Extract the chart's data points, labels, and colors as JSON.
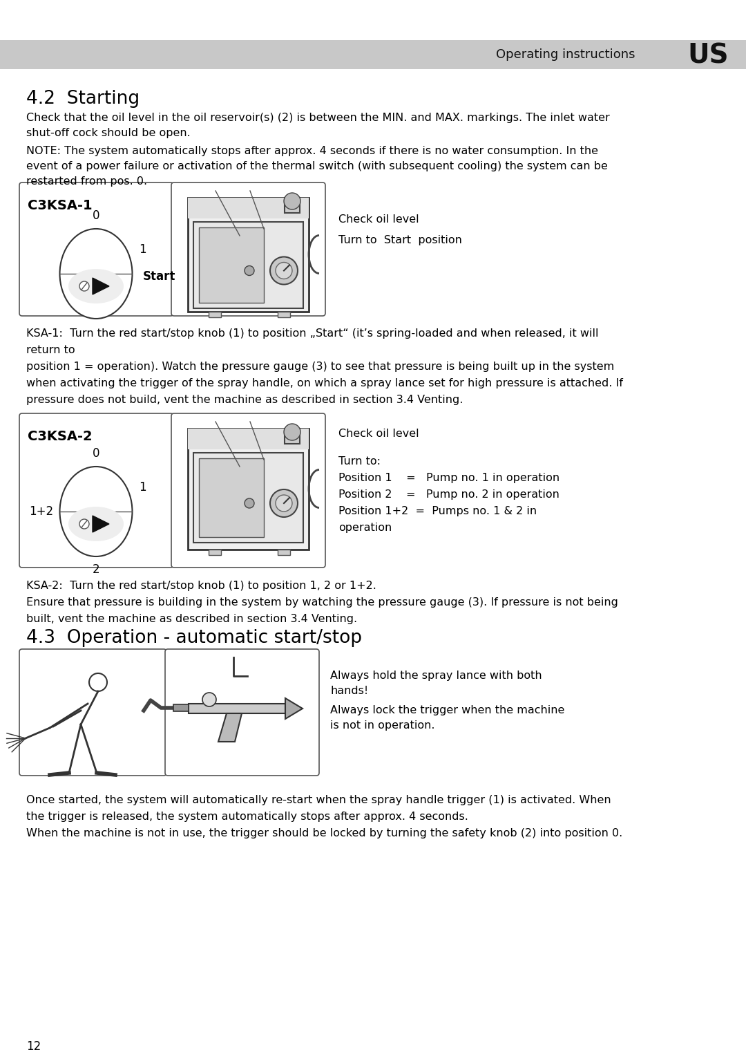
{
  "page_bg": "#ffffff",
  "header_bg": "#c8c8c8",
  "header_text": "Operating instructions",
  "header_code": "US",
  "section_42_title": "4.2  Starting",
  "para1_line1": "Check that the oil level in the oil reservoir(s) (2) is between the MIN. and MAX. markings. The inlet water",
  "para1_line2": "shut-off cock should be open.",
  "para2_line1": "NOTE: The system automatically stops after approx. 4 seconds if there is no water consumption. In the",
  "para2_line2": "event of a power failure or activation of the thermal switch (with subsequent cooling) the system can be",
  "para2_line3": "restarted from pos. 0.",
  "box1_label": "C3KSA-1",
  "box1_0": "0",
  "box1_1": "1",
  "box1_start": "Start",
  "check_oil_1": "Check oil level",
  "turn_start": "Turn to  Start  position",
  "ksa1_lines": [
    "KSA-1:  Turn the red start/stop knob (1) to position „Start“ (it’s spring-loaded and when released, it will",
    "return to",
    "position 1 = operation). Watch the pressure gauge (3) to see that pressure is being built up in the system",
    "when activating the trigger of the spray handle, on which a spray lance set for high pressure is attached. If",
    "pressure does not build, vent the machine as described in section 3.4 Venting."
  ],
  "box3_label": "C3KSA-2",
  "box3_0": "0",
  "box3_1": "1",
  "box3_2": "2",
  "box3_12": "1+2",
  "check_oil_2": "Check oil level",
  "turn_to_lines": [
    "Turn to:",
    "Position 1    =   Pump no. 1 in operation",
    "Position 2    =   Pump no. 2 in operation",
    "Position 1+2  =  Pumps no. 1 & 2 in",
    "operation"
  ],
  "ksa2_lines": [
    "KSA-2:  Turn the red start/stop knob (1) to position 1, 2 or 1+2.",
    "Ensure that pressure is building in the system by watching the pressure gauge (3). If pressure is not being",
    "built, vent the machine as described in section 3.4 Venting."
  ],
  "section_43_title": "4.3  Operation - automatic start/stop",
  "safety_text1_l1": "Always hold the spray lance with both",
  "safety_text1_l2": "hands!",
  "safety_text2_l1": "Always lock the trigger when the machine",
  "safety_text2_l2": "is not in operation.",
  "footer_lines": [
    "Once started, the system will automatically re-start when the spray handle trigger (1) is activated. When",
    "the trigger is released, the system automatically stops after approx. 4 seconds.",
    "When the machine is not in use, the trigger should be locked by turning the safety knob (2) into position 0."
  ],
  "page_num": "12"
}
